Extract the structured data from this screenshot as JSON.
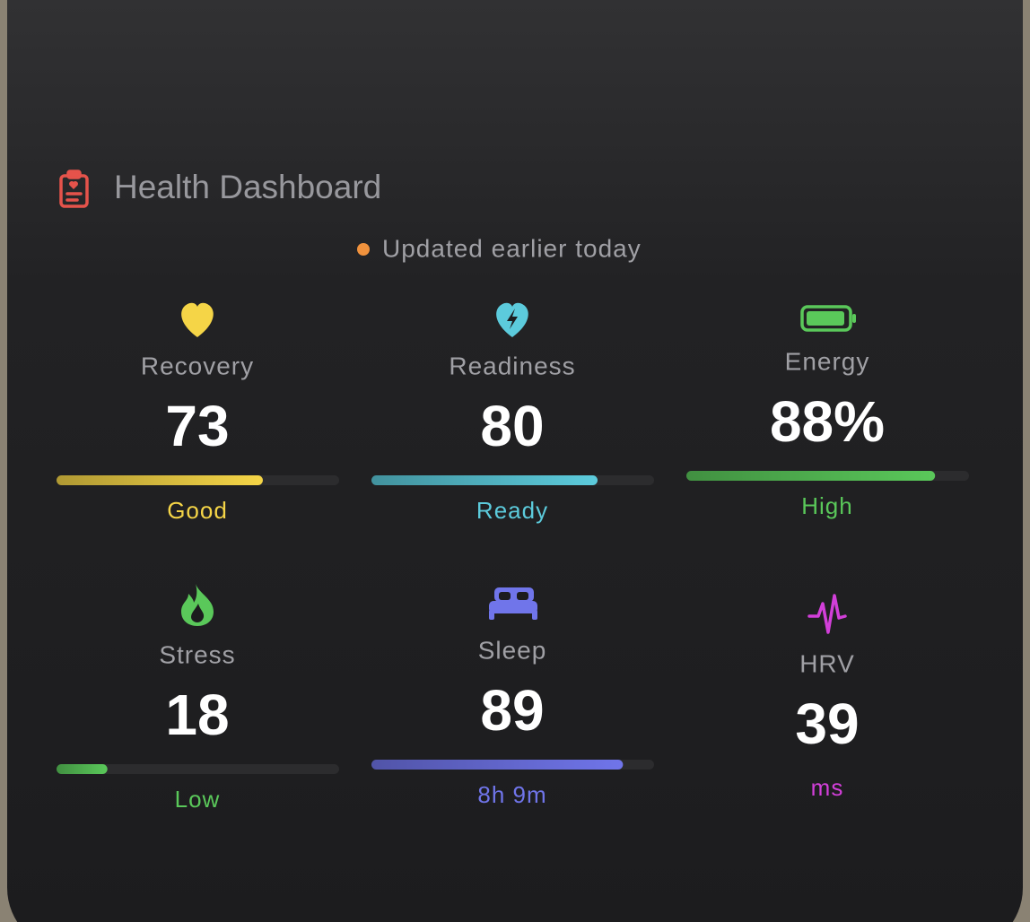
{
  "header": {
    "title": "Health Dashboard",
    "status": "Updated earlier today"
  },
  "scale": [
    0,
    100
  ],
  "metrics": [
    {
      "label": "Recovery",
      "value": 73,
      "status": "Good",
      "color": "#f5d547",
      "bar": true
    },
    {
      "label": "Readiness",
      "value": 80,
      "status": "Ready",
      "color": "#5ccbdc",
      "bar": true
    },
    {
      "label": "Energy",
      "value": 88,
      "value_label": "88%",
      "status": "High",
      "color": "#5ac85a",
      "bar": true
    },
    {
      "label": "Stress",
      "value": 18,
      "status": "Low",
      "color": "#5ac85a",
      "bar": true
    },
    {
      "label": "Sleep",
      "value": 89,
      "status": "8h 9m",
      "color": "#7075ea",
      "bar": true
    },
    {
      "label": "HRV",
      "value": 39,
      "status": "ms",
      "color": "#d23fd9",
      "bar": false
    }
  ]
}
